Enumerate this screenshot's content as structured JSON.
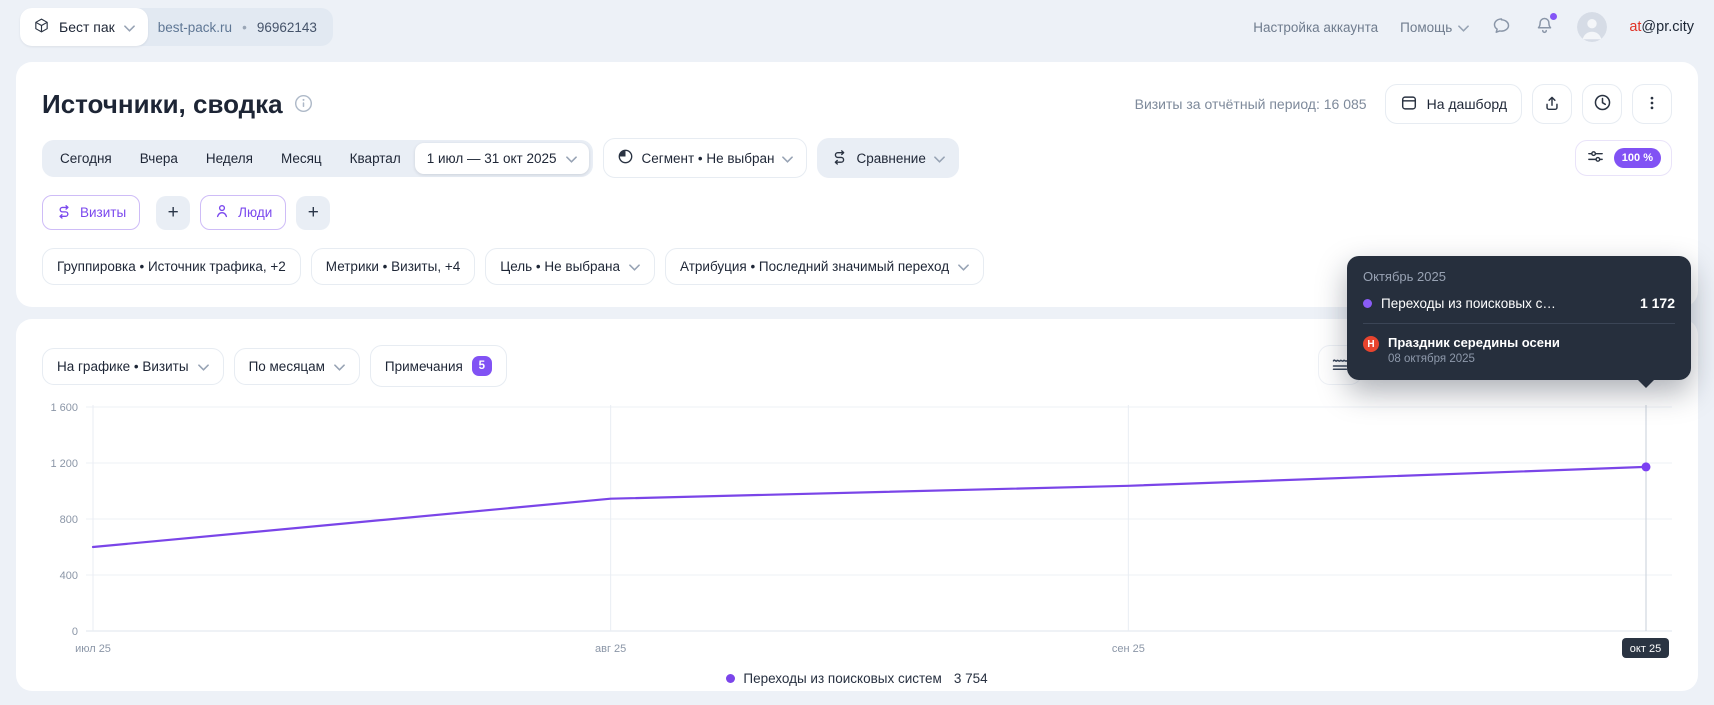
{
  "topbar": {
    "counter_name": "Бест пак",
    "site": "best-pack.ru",
    "separator": "•",
    "counter_id": "96962143",
    "account_settings": "Настройка аккаунта",
    "help": "Помощь",
    "email_prefix": "at",
    "email_suffix": "@pr.city"
  },
  "header": {
    "title": "Источники, сводка",
    "visits_summary": "Визиты за отчётный период: 16 085",
    "dashboard_button": "На дашборд"
  },
  "toolbar": {
    "period_tabs": [
      "Сегодня",
      "Вчера",
      "Неделя",
      "Месяц",
      "Квартал"
    ],
    "date_range": "1 июл — 31 окт 2025",
    "segment_label": "Сегмент • Не выбран",
    "compare_label": "Сравнение",
    "sampling_badge": "100 %"
  },
  "metric_chips": {
    "visits": "Визиты",
    "people": "Люди",
    "add": "+"
  },
  "filters": {
    "grouping": "Группировка • Источник трафика, +2",
    "metrics": "Метрики • Визиты, +4",
    "goal": "Цель • Не выбрана",
    "attribution": "Атрибуция • Последний значимый переход"
  },
  "chart_controls": {
    "on_chart": "На графике • Визиты",
    "period_grouping": "По месяцам",
    "notes": "Примечания",
    "notes_count": "5"
  },
  "tooltip": {
    "title": "Октябрь 2025",
    "series_label": "Переходы из поисковых с…",
    "series_value": "1 172",
    "note_marker": "Н",
    "note_title": "Праздник середины осени",
    "note_date": "08 октября 2025"
  },
  "chart_data": {
    "type": "line",
    "title": "",
    "xlabel": "",
    "ylabel": "",
    "categories": [
      "июл 25",
      "авг 25",
      "сен 25",
      "окт 25"
    ],
    "series": [
      {
        "name": "Переходы из поисковых систем",
        "values": [
          600,
          945,
          1037,
          1172
        ],
        "color": "#7a45e8"
      }
    ],
    "ylim": [
      0,
      1600
    ],
    "yticks": [
      0,
      400,
      800,
      1200,
      1600
    ],
    "ytick_labels": [
      "0",
      "400",
      "800",
      "1 200",
      "1 600"
    ],
    "grid": true,
    "highlighted_category_index": 3,
    "highlighted_value": "1 172",
    "legend_position": "bottom",
    "legend": {
      "label": "Переходы из поисковых систем",
      "value": "3 754"
    }
  }
}
